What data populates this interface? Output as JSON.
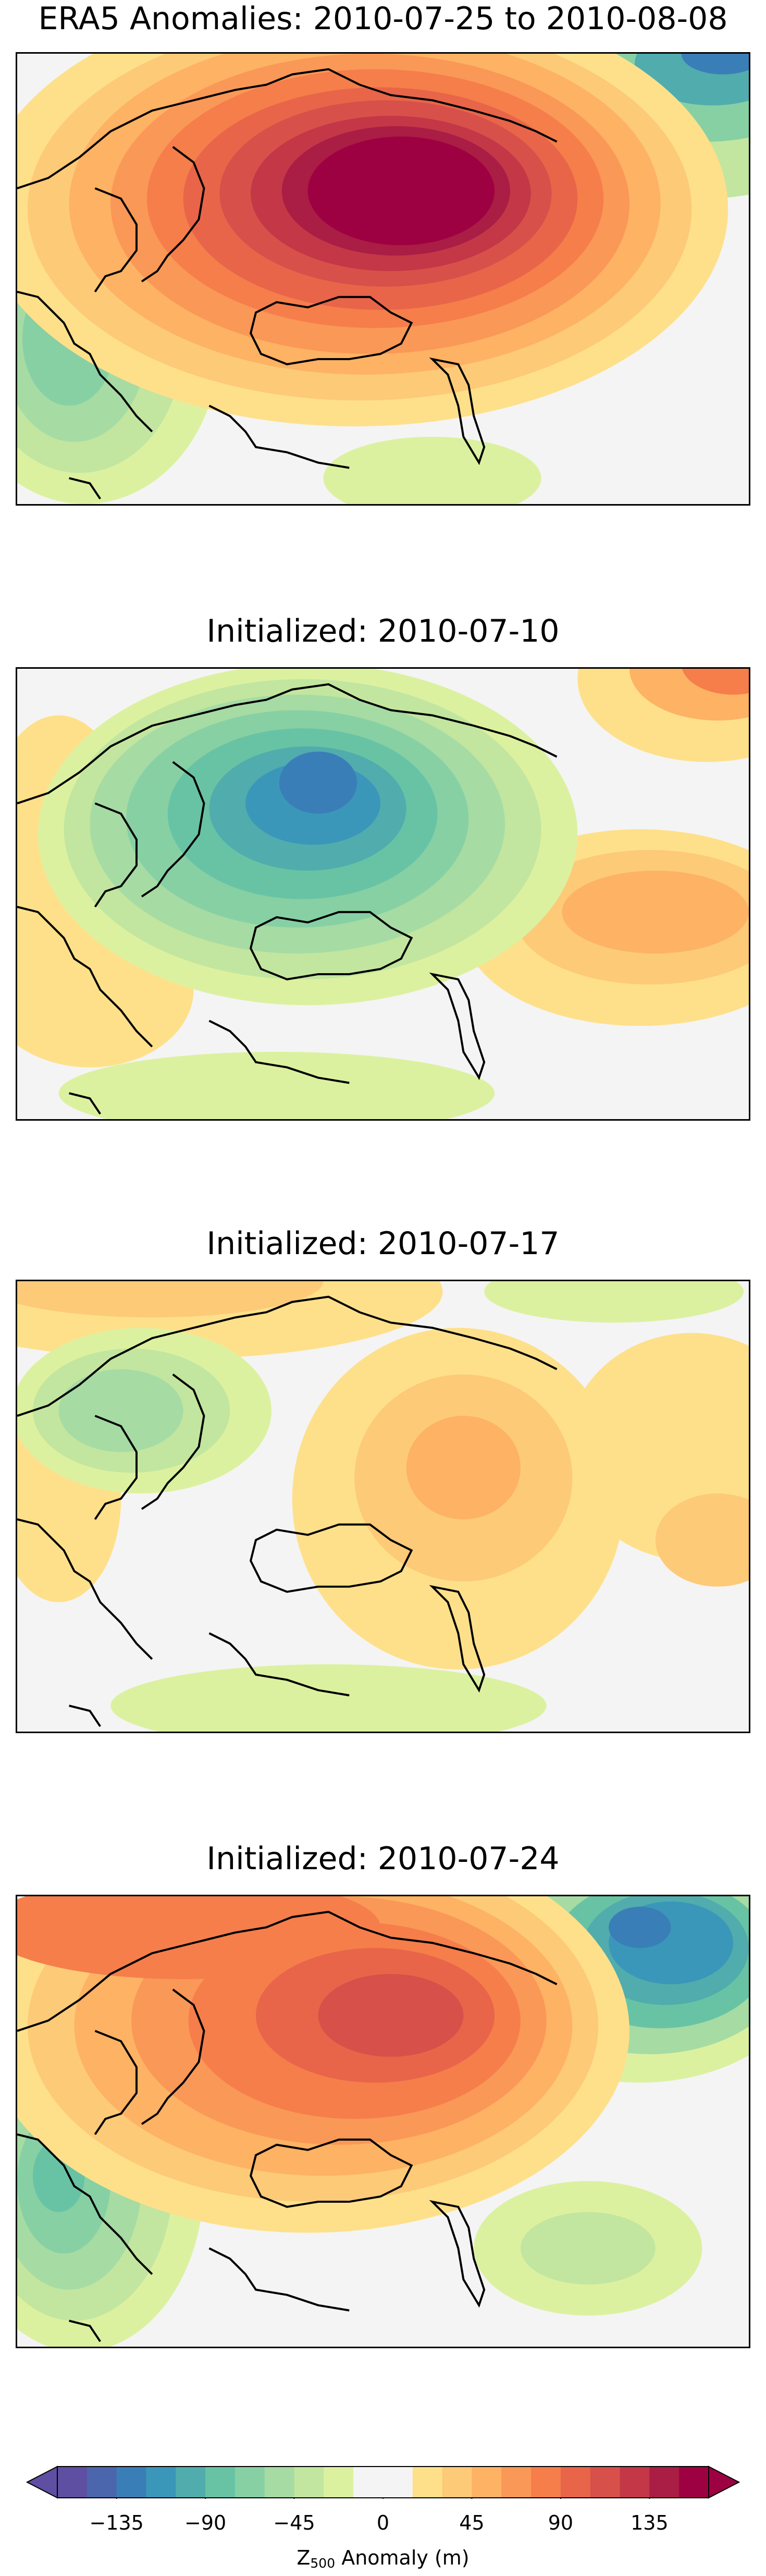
{
  "panels": [
    {
      "title": "ERA5 Anomalies: 2010-07-25 to 2010-08-08"
    },
    {
      "title": "Initialized: 2010-07-10"
    },
    {
      "title": "Initialized: 2010-07-17"
    },
    {
      "title": "Initialized: 2010-07-24"
    }
  ],
  "colorbar": {
    "ticks": [
      "−135",
      "−90",
      "−45",
      "0",
      "45",
      "90",
      "135"
    ],
    "tick_values": [
      -135,
      -90,
      -45,
      0,
      45,
      90,
      135
    ],
    "range": [
      -165,
      165
    ],
    "extend": "both",
    "colors": [
      "#5e4fa2",
      "#4b66ad",
      "#3a7eb8",
      "#3b97b9",
      "#51acad",
      "#68c3a5",
      "#87d0a4",
      "#a6dba4",
      "#c2e69f",
      "#dcf1a0",
      "#f4f4f4",
      "#f4f4f4",
      "#fee08b",
      "#fdca78",
      "#fdb264",
      "#fa9857",
      "#f57e4b",
      "#e86549",
      "#d8504a",
      "#c43747",
      "#aa1d45",
      "#9e0142"
    ],
    "label_main": "Z",
    "label_sub": "500",
    "label_rest": " Anomaly (m)"
  }
}
